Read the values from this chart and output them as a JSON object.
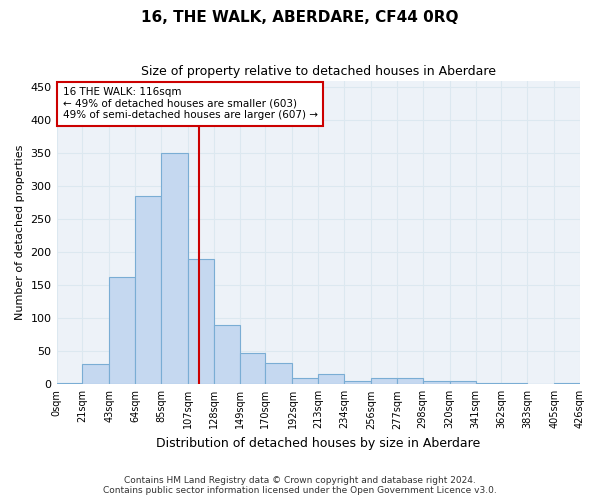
{
  "title": "16, THE WALK, ABERDARE, CF44 0RQ",
  "subtitle": "Size of property relative to detached houses in Aberdare",
  "xlabel": "Distribution of detached houses by size in Aberdare",
  "ylabel": "Number of detached properties",
  "footer_line1": "Contains HM Land Registry data © Crown copyright and database right 2024.",
  "footer_line2": "Contains public sector information licensed under the Open Government Licence v3.0.",
  "bar_left_edges": [
    0,
    21,
    43,
    64,
    85,
    107,
    128,
    149,
    170,
    192,
    213,
    234,
    256,
    277,
    298,
    320,
    341,
    362,
    383,
    405
  ],
  "bar_heights": [
    2,
    30,
    162,
    285,
    350,
    190,
    90,
    48,
    32,
    10,
    15,
    5,
    10,
    10,
    5,
    5,
    2,
    2,
    0,
    2
  ],
  "bar_width": [
    21,
    22,
    21,
    21,
    22,
    21,
    21,
    21,
    22,
    21,
    21,
    22,
    21,
    21,
    22,
    21,
    21,
    21,
    22,
    21
  ],
  "bar_color": "#c5d8f0",
  "bar_edge_color": "#7aadd4",
  "tick_positions": [
    0,
    21,
    43,
    64,
    85,
    107,
    128,
    149,
    170,
    192,
    213,
    234,
    256,
    277,
    298,
    320,
    341,
    362,
    383,
    405,
    426
  ],
  "tick_labels": [
    "0sqm",
    "21sqm",
    "43sqm",
    "64sqm",
    "85sqm",
    "107sqm",
    "128sqm",
    "149sqm",
    "170sqm",
    "192sqm",
    "213sqm",
    "234sqm",
    "256sqm",
    "277sqm",
    "298sqm",
    "320sqm",
    "341sqm",
    "362sqm",
    "383sqm",
    "405sqm",
    "426sqm"
  ],
  "vline_x": 116,
  "vline_color": "#cc0000",
  "annotation_text": "16 THE WALK: 116sqm\n← 49% of detached houses are smaller (603)\n49% of semi-detached houses are larger (607) →",
  "annotation_box_color": "#ffffff",
  "annotation_box_edge_color": "#cc0000",
  "ylim": [
    0,
    460
  ],
  "xlim": [
    0,
    426
  ],
  "yticks": [
    0,
    50,
    100,
    150,
    200,
    250,
    300,
    350,
    400,
    450
  ],
  "grid_color": "#dce8f0",
  "background_color": "#edf2f8"
}
